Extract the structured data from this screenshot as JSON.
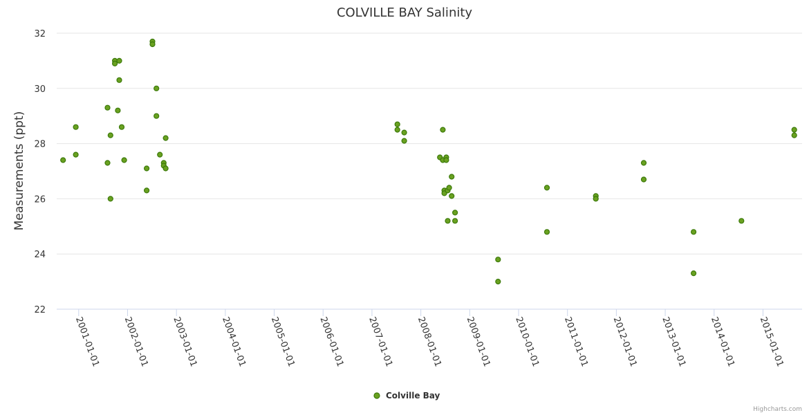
{
  "chart_data": {
    "type": "scatter",
    "title": "COLVILLE BAY Salinity",
    "xlabel": "",
    "ylabel": "Measurements (ppt)",
    "ylim": [
      22,
      32
    ],
    "yticks": [
      22,
      24,
      26,
      28,
      30,
      32
    ],
    "xlim": [
      2000.55,
      2015.8
    ],
    "xticks": [
      {
        "year": 2001,
        "label": "2001-01-01"
      },
      {
        "year": 2002,
        "label": "2002-01-01"
      },
      {
        "year": 2003,
        "label": "2003-01-01"
      },
      {
        "year": 2004,
        "label": "2004-01-01"
      },
      {
        "year": 2005,
        "label": "2005-01-01"
      },
      {
        "year": 2006,
        "label": "2006-01-01"
      },
      {
        "year": 2007,
        "label": "2007-01-01"
      },
      {
        "year": 2008,
        "label": "2008-01-01"
      },
      {
        "year": 2009,
        "label": "2009-01-01"
      },
      {
        "year": 2010,
        "label": "2010-01-01"
      },
      {
        "year": 2011,
        "label": "2011-01-01"
      },
      {
        "year": 2012,
        "label": "2012-01-01"
      },
      {
        "year": 2013,
        "label": "2013-01-01"
      },
      {
        "year": 2014,
        "label": "2014-01-01"
      },
      {
        "year": 2015,
        "label": "2015-01-01"
      }
    ],
    "grid": true,
    "legend_position": "bottom-center",
    "series": [
      {
        "name": "Colville Bay",
        "color": "#6aa121",
        "stroke": "#3c7a0a",
        "points": [
          [
            2000.68,
            27.4
          ],
          [
            2000.94,
            28.6
          ],
          [
            2000.94,
            27.6
          ],
          [
            2001.59,
            29.3
          ],
          [
            2001.59,
            27.3
          ],
          [
            2001.65,
            28.3
          ],
          [
            2001.65,
            26.0
          ],
          [
            2001.74,
            31.0
          ],
          [
            2001.74,
            30.9
          ],
          [
            2001.83,
            31.0
          ],
          [
            2001.83,
            30.3
          ],
          [
            2001.8,
            29.2
          ],
          [
            2001.88,
            28.6
          ],
          [
            2001.93,
            27.4
          ],
          [
            2002.39,
            27.1
          ],
          [
            2002.39,
            26.3
          ],
          [
            2002.51,
            31.7
          ],
          [
            2002.51,
            31.6
          ],
          [
            2002.59,
            30.0
          ],
          [
            2002.59,
            29.0
          ],
          [
            2002.66,
            27.6
          ],
          [
            2002.74,
            27.3
          ],
          [
            2002.74,
            27.2
          ],
          [
            2002.78,
            27.1
          ],
          [
            2002.78,
            28.2
          ],
          [
            2007.52,
            28.7
          ],
          [
            2007.52,
            28.5
          ],
          [
            2007.66,
            28.4
          ],
          [
            2007.66,
            28.1
          ],
          [
            2008.39,
            27.5
          ],
          [
            2008.45,
            28.5
          ],
          [
            2008.45,
            27.4
          ],
          [
            2008.48,
            26.3
          ],
          [
            2008.48,
            26.2
          ],
          [
            2008.52,
            27.5
          ],
          [
            2008.52,
            27.4
          ],
          [
            2008.55,
            26.3
          ],
          [
            2008.58,
            26.4
          ],
          [
            2008.55,
            25.2
          ],
          [
            2008.63,
            26.8
          ],
          [
            2008.63,
            26.1
          ],
          [
            2008.7,
            25.5
          ],
          [
            2008.7,
            25.2
          ],
          [
            2009.58,
            23.8
          ],
          [
            2009.58,
            23.0
          ],
          [
            2010.58,
            26.4
          ],
          [
            2010.58,
            24.8
          ],
          [
            2011.58,
            26.1
          ],
          [
            2011.58,
            26.0
          ],
          [
            2012.56,
            27.3
          ],
          [
            2012.56,
            26.7
          ],
          [
            2013.58,
            24.8
          ],
          [
            2013.58,
            23.3
          ],
          [
            2014.56,
            25.2
          ],
          [
            2015.64,
            28.5
          ],
          [
            2015.64,
            28.3
          ]
        ]
      }
    ]
  },
  "legend": {
    "label": "Colville Bay"
  },
  "credits": "Highcharts.com"
}
